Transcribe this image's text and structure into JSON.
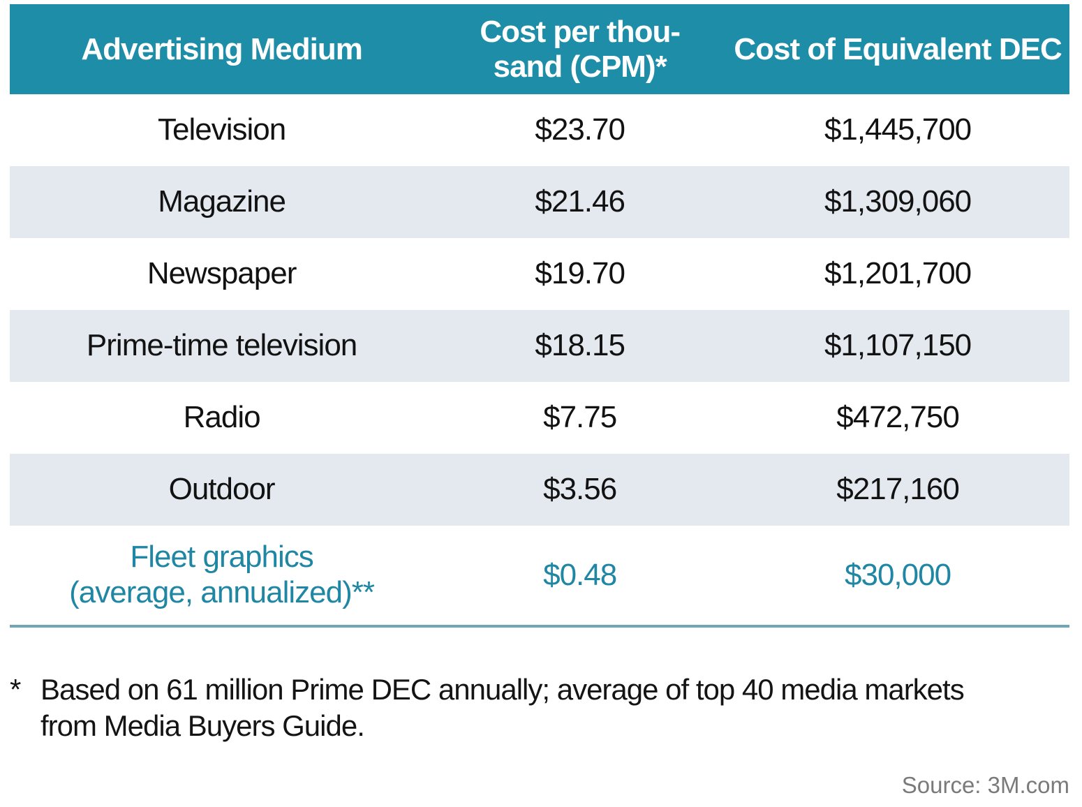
{
  "table": {
    "columns": [
      "Advertising Medium",
      "Cost per thou-\nsand (CPM)*",
      "Cost of Equivalent DEC"
    ],
    "rows": [
      {
        "medium": "Television",
        "cpm": "$23.70",
        "dec": "$1,445,700",
        "highlight": false
      },
      {
        "medium": "Magazine",
        "cpm": "$21.46",
        "dec": "$1,309,060",
        "highlight": false
      },
      {
        "medium": "Newspaper",
        "cpm": "$19.70",
        "dec": "$1,201,700",
        "highlight": false
      },
      {
        "medium": "Prime-time television",
        "cpm": "$18.15",
        "dec": "$1,107,150",
        "highlight": false
      },
      {
        "medium": "Radio",
        "cpm": "$7.75",
        "dec": "$472,750",
        "highlight": false
      },
      {
        "medium": "Outdoor",
        "cpm": "$3.56",
        "dec": "$217,160",
        "highlight": false
      },
      {
        "medium": "Fleet graphics\n(average, annualized)**",
        "cpm": "$0.48",
        "dec": "$30,000",
        "highlight": true
      }
    ]
  },
  "footnote": {
    "marker": "*",
    "text": "Based on 61 million Prime DEC annually; average of top 40 media markets\nfrom Media Buyers Guide."
  },
  "source": "Source: 3M.com",
  "colors": {
    "header_background": "#1e8da8",
    "shaded_row": "#e3e9ee",
    "highlight_text": "#1f86a4",
    "divider": "#6fa6b5",
    "body_text": "#121212",
    "source_text": "#7a7a7a"
  },
  "chart_data": {
    "type": "table",
    "title": "",
    "columns": [
      "Advertising Medium",
      "Cost per thousand (CPM)*",
      "Cost of Equivalent DEC"
    ],
    "rows": [
      [
        "Television",
        23.7,
        1445700
      ],
      [
        "Magazine",
        21.46,
        1309060
      ],
      [
        "Newspaper",
        19.7,
        1201700
      ],
      [
        "Prime-time television",
        18.15,
        1107150
      ],
      [
        "Radio",
        7.75,
        472750
      ],
      [
        "Outdoor",
        3.56,
        217160
      ],
      [
        "Fleet graphics (average, annualized)**",
        0.48,
        30000
      ]
    ],
    "footnote": "* Based on 61 million Prime DEC annually; average of top 40 media markets from Media Buyers Guide.",
    "source": "Source: 3M.com"
  }
}
